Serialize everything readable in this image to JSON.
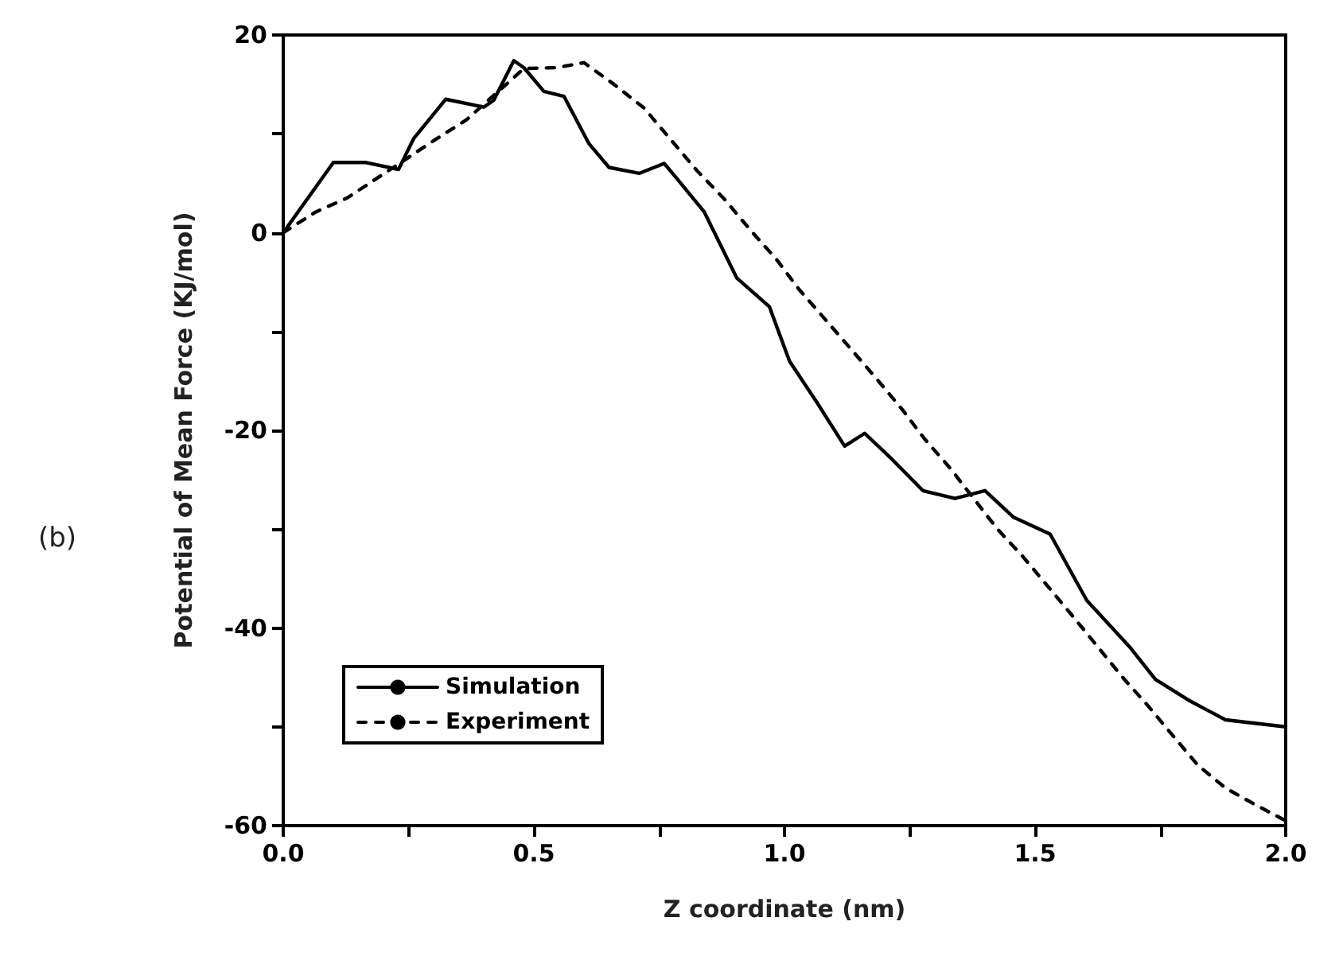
{
  "chart_data": {
    "type": "line",
    "xlabel": "Z coordinate (nm)",
    "ylabel": "Potential of Mean Force (KJ/mol)",
    "annotations": [
      "(b)"
    ],
    "xlim": [
      0,
      2.0
    ],
    "ylim": [
      -60,
      20
    ],
    "xticks": [
      {
        "value": 0,
        "label": "0.0"
      },
      {
        "value": 0.25,
        "label": null
      },
      {
        "value": 0.5,
        "label": "0.5"
      },
      {
        "value": 0.75,
        "label": null
      },
      {
        "value": 1.0,
        "label": "1.0"
      },
      {
        "value": 1.25,
        "label": null
      },
      {
        "value": 1.5,
        "label": "1.5"
      },
      {
        "value": 1.75,
        "label": null
      },
      {
        "value": 2.0,
        "label": "2.0"
      }
    ],
    "yticks": [
      -60,
      {
        "value": -50,
        "label": null
      },
      -40,
      {
        "value": -30,
        "label": null
      },
      -20,
      {
        "value": -10,
        "label": null
      },
      0,
      {
        "value": 10,
        "label": null
      },
      20
    ],
    "grid": false,
    "legend": "bottom left",
    "marker": "none",
    "series": [
      {
        "name": "Simulation",
        "color": "#000000",
        "line_style": "solid",
        "x": [
          0,
          0.1,
          0.165,
          0.23,
          0.26,
          0.324,
          0.4,
          0.42,
          0.46,
          0.48,
          0.52,
          0.56,
          0.61,
          0.65,
          0.71,
          0.76,
          0.78,
          0.84,
          0.905,
          0.97,
          1.01,
          1.065,
          1.12,
          1.16,
          1.21,
          1.276,
          1.34,
          1.4,
          1.457,
          1.53,
          1.603,
          1.69,
          1.74,
          1.806,
          1.88,
          2.0
        ],
        "values": [
          0,
          7.1,
          7.1,
          6.4,
          9.5,
          13.5,
          12.7,
          13.4,
          17.4,
          16.7,
          14.3,
          13.8,
          9.0,
          6.6,
          6.0,
          7.0,
          5.8,
          2.1,
          -4.6,
          -7.5,
          -13,
          -17.2,
          -21.6,
          -20.3,
          -22.7,
          -26.1,
          -26.9,
          -26.1,
          -28.8,
          -30.5,
          -37.2,
          -42,
          -45.2,
          -47.3,
          -49.3,
          -50
        ]
      },
      {
        "name": "Experiment",
        "color": "#000000",
        "line_style": "dashed",
        "x": [
          0,
          0.065,
          0.127,
          0.187,
          0.3,
          0.365,
          0.48,
          0.546,
          0.6,
          0.66,
          0.72,
          0.775,
          0.825,
          0.88,
          0.933,
          0.984,
          1.03,
          1.08,
          1.133,
          1.184,
          1.235,
          1.28,
          1.33,
          1.425,
          1.476,
          1.524,
          1.575,
          1.625,
          1.673,
          1.724,
          1.775,
          1.825,
          1.88,
          1.94,
          2.0
        ],
        "values": [
          0,
          2.1,
          3.5,
          5.5,
          9.3,
          11.4,
          16.6,
          16.7,
          17.2,
          15,
          12.6,
          9.3,
          6.3,
          3.4,
          0.2,
          -2.7,
          -5.8,
          -8.7,
          -11.8,
          -14.8,
          -17.9,
          -20.9,
          -23.8,
          -30,
          -32.8,
          -35.7,
          -38.8,
          -41.9,
          -44.9,
          -47.8,
          -50.9,
          -53.9,
          -56.2,
          -57.9,
          -59.5
        ]
      }
    ]
  }
}
